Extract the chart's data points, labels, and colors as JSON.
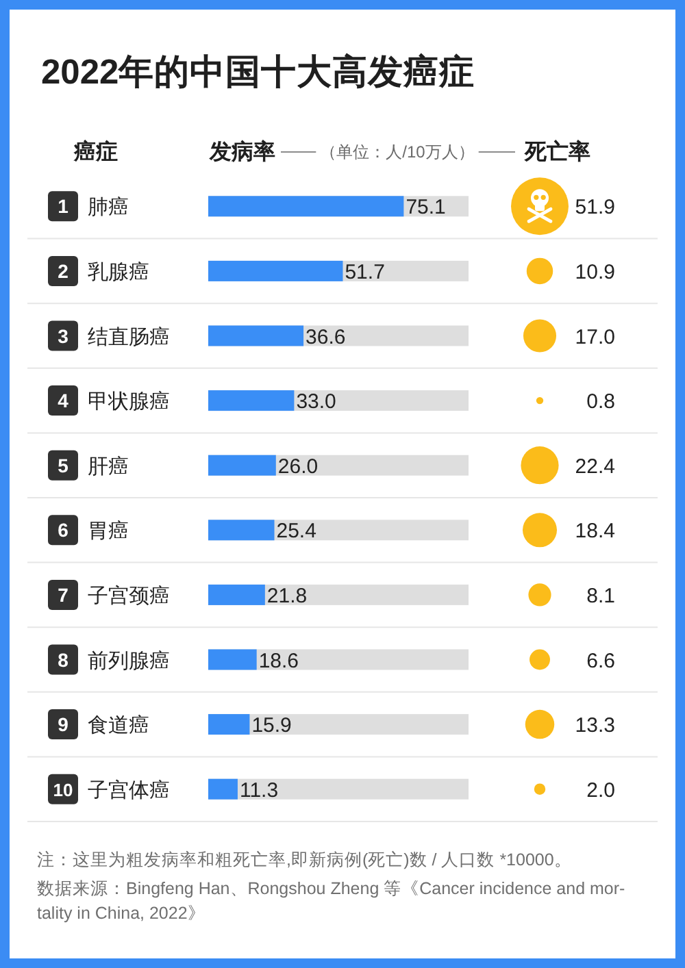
{
  "chart_data": [
    {
      "type": "bar",
      "orientation": "horizontal",
      "title": "2022年的中国十大高发癌症",
      "ylabel": "癌症",
      "xlabel": "（单位：人/10万人）",
      "categories": [
        "1 肺癌",
        "2 乳腺癌",
        "3 结直肠癌",
        "4 甲状腺癌",
        "5 肝癌",
        "6 胃癌",
        "7 子宫颈癌",
        "8 前列腺癌",
        "9 食道癌",
        "10 子宫体癌"
      ],
      "xlim": [
        0,
        100
      ],
      "series": [
        {
          "name": "发病率",
          "color": "#3a8ef6",
          "values": [
            75.1,
            51.7,
            36.6,
            33.0,
            26.0,
            25.4,
            21.8,
            18.6,
            15.9,
            11.3
          ],
          "value_labels": [
            "75.1",
            "51.7",
            "36.6",
            "33.0",
            "26.0",
            "25.4",
            "21.8",
            "18.6",
            "15.9",
            "11.3"
          ]
        }
      ],
      "annotations": [
        "注：这里为粗发病率和粗死亡率,即新病例(死亡)数 / 人口数 *10000。",
        "数据来源：Bingfeng Han、Rongshou Zheng 等《Cancer incidence and mor-tality in China, 2022》"
      ]
    },
    {
      "type": "other",
      "title": "死亡率",
      "color": "#fbbc1a",
      "values": [
        51.9,
        10.9,
        17.0,
        0.8,
        22.4,
        18.4,
        8.1,
        6.6,
        13.3,
        2.0
      ],
      "value_labels": [
        "51.9",
        "10.9",
        "17.0",
        "0.8",
        "22.4",
        "18.4",
        "8.1",
        "6.6",
        "13.3",
        "2.0"
      ]
    }
  ]
}
